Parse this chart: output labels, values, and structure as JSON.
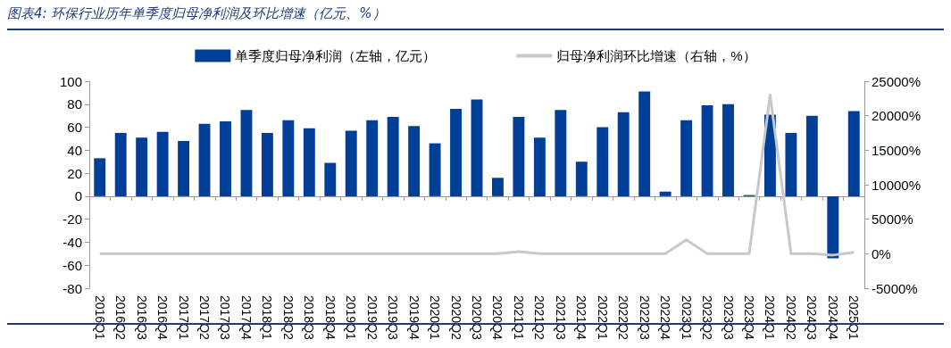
{
  "chart_data": {
    "type": "bar",
    "title": "图表4:  环保行业历年单季度归母净利润及环比增速（亿元、%）",
    "categories": [
      "2016Q1",
      "2016Q2",
      "2016Q3",
      "2016Q4",
      "2017Q1",
      "2017Q2",
      "2017Q3",
      "2017Q4",
      "2018Q1",
      "2018Q2",
      "2018Q3",
      "2018Q4",
      "2019Q1",
      "2019Q2",
      "2019Q3",
      "2019Q4",
      "2020Q1",
      "2020Q2",
      "2020Q3",
      "2020Q4",
      "2021Q1",
      "2021Q2",
      "2021Q3",
      "2021Q4",
      "2022Q1",
      "2022Q2",
      "2022Q3",
      "2022Q4",
      "2023Q1",
      "2023Q2",
      "2023Q3",
      "2023Q4",
      "2024Q1",
      "2024Q2",
      "2024Q3",
      "2024Q4",
      "2025Q1"
    ],
    "series": [
      {
        "name": "单季度归母净利润（左轴，亿元）",
        "color": "#003f98",
        "values": [
          33,
          55,
          51,
          56,
          48,
          63,
          65,
          75,
          55,
          66,
          59,
          29,
          57,
          66,
          69,
          61,
          46,
          76,
          84,
          16,
          69,
          51,
          75,
          30,
          60,
          73,
          91,
          4,
          66,
          79,
          80,
          1,
          71,
          55,
          70,
          -54,
          74
        ]
      },
      {
        "name": "归母净利润环比增速（右轴，%）",
        "type": "line",
        "axis": "y2",
        "color": "#c8c8c8",
        "values": [
          0,
          0,
          0,
          0,
          0,
          0,
          0,
          0,
          0,
          0,
          0,
          0,
          0,
          0,
          0,
          0,
          0,
          0,
          0,
          0,
          300,
          0,
          0,
          0,
          0,
          0,
          0,
          0,
          2000,
          0,
          0,
          0,
          23000,
          0,
          0,
          -200,
          200
        ]
      }
    ],
    "ylim": [
      -80,
      100
    ],
    "yticks": [
      -80,
      -60,
      -40,
      -20,
      0,
      20,
      40,
      60,
      80,
      100
    ],
    "y2lim": [
      -5000,
      25000
    ],
    "y2ticks": [
      {
        "value": -5000,
        "label": "-5000%"
      },
      {
        "value": 0,
        "label": "0%"
      },
      {
        "value": 5000,
        "label": "5000%"
      },
      {
        "value": 10000,
        "label": "10000%"
      },
      {
        "value": 15000,
        "label": "15000%"
      },
      {
        "value": 20000,
        "label": "20000%"
      },
      {
        "value": 25000,
        "label": "25000%"
      }
    ],
    "legend": "top",
    "marker": "none",
    "line_style": "solid"
  }
}
